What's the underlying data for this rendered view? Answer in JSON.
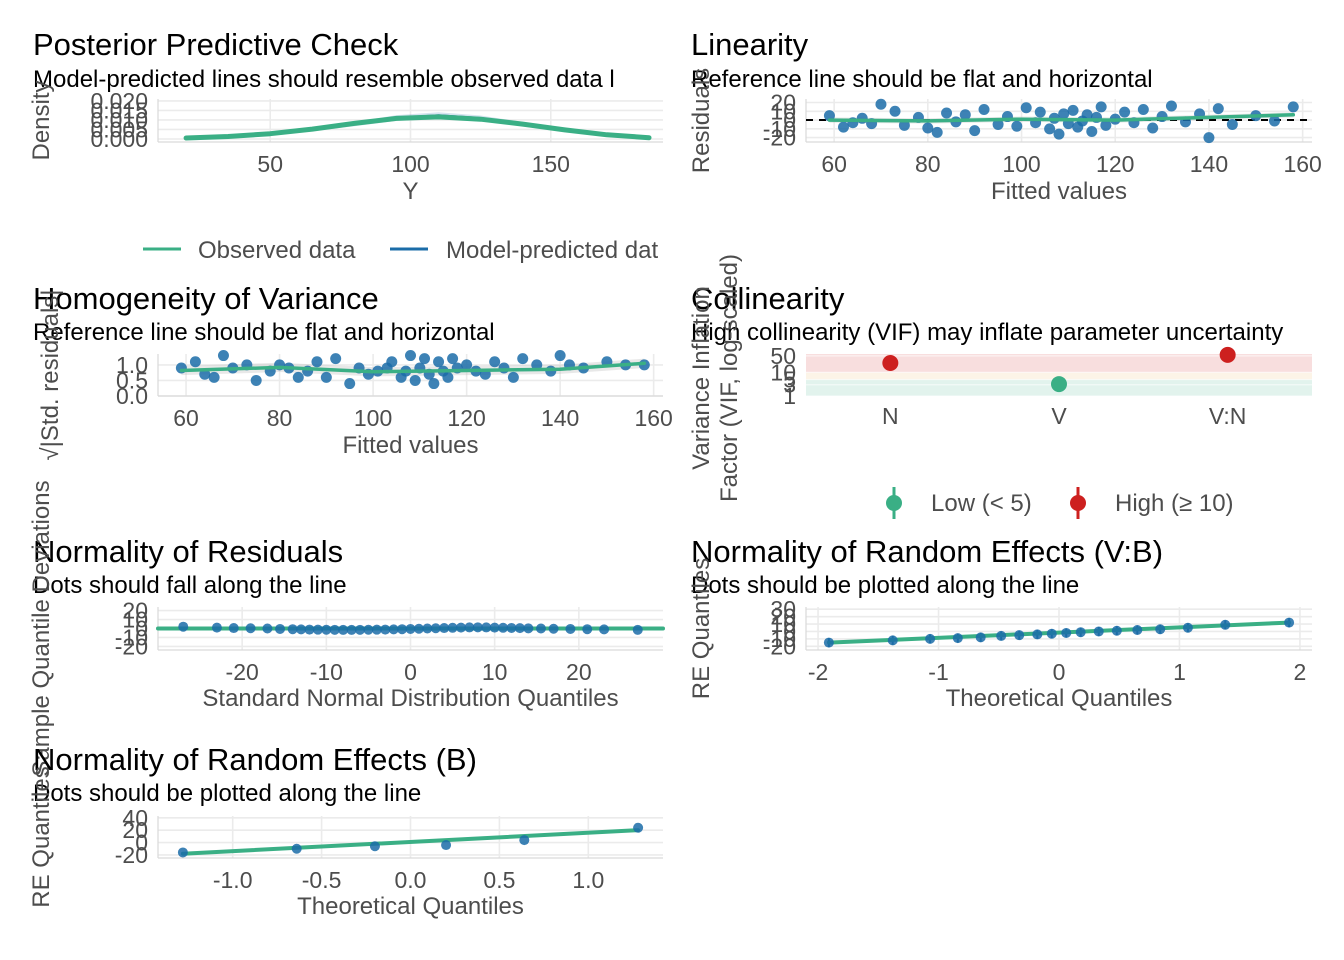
{
  "colors": {
    "green": "#3aaf85",
    "blue": "#1b6ca8",
    "red": "#cd201f",
    "grid": "#ebebeb",
    "axis_text": "#4d4d4d"
  },
  "chart_data": [
    {
      "id": "ppc",
      "type": "line",
      "title": "Posterior Predictive Check",
      "subtitle": "Model-predicted lines should resemble observed data l",
      "xlabel": "Y",
      "ylabel": "Density",
      "xlim": [
        10,
        190
      ],
      "ylim": [
        0,
        0.021
      ],
      "xticks": [
        50,
        100,
        150
      ],
      "yticks": [
        0.0,
        0.005,
        0.01,
        0.015,
        0.02
      ],
      "ytick_labels": [
        "0.000",
        "0.005",
        "0.010",
        "0.015",
        "0.020"
      ],
      "legend": [
        "Observed data",
        "Model-predicted dat"
      ],
      "series": [
        {
          "name": "Observed data",
          "x": [
            20,
            35,
            50,
            65,
            80,
            95,
            110,
            125,
            140,
            155,
            170,
            185
          ],
          "y": [
            0.0005,
            0.0013,
            0.0028,
            0.0052,
            0.0082,
            0.0108,
            0.0116,
            0.0104,
            0.0078,
            0.0048,
            0.0022,
            0.0007
          ]
        },
        {
          "name": "Model-predicted dat",
          "x": [
            20,
            35,
            50,
            65,
            80,
            95,
            110,
            125,
            140,
            155,
            170,
            185
          ],
          "y": [
            0.0004,
            0.0011,
            0.0025,
            0.0048,
            0.0079,
            0.0112,
            0.0125,
            0.011,
            0.008,
            0.0047,
            0.002,
            0.0006
          ]
        }
      ]
    },
    {
      "id": "linearity",
      "type": "scatter",
      "title": "Linearity",
      "subtitle": "Reference line should be flat and horizontal",
      "xlabel": "Fitted values",
      "ylabel": "Residuals",
      "xlim": [
        54,
        162
      ],
      "ylim": [
        -25,
        24
      ],
      "xticks": [
        60,
        80,
        100,
        120,
        140,
        160
      ],
      "yticks": [
        -20,
        -10,
        0,
        10,
        20
      ],
      "ytick_labels": [
        "-20",
        "-10",
        "0",
        "10",
        "20"
      ],
      "points": {
        "x": [
          59,
          62,
          64,
          66,
          68,
          70,
          73,
          75,
          78,
          80,
          82,
          84,
          86,
          88,
          90,
          92,
          95,
          97,
          99,
          101,
          103,
          104,
          106,
          107,
          108,
          109,
          110,
          111,
          112,
          113,
          114,
          115,
          116,
          117,
          118,
          120,
          122,
          124,
          126,
          128,
          130,
          132,
          135,
          138,
          140,
          142,
          145,
          150,
          154,
          158
        ],
        "y": [
          5,
          -8,
          -3,
          2,
          -4,
          18,
          10,
          -6,
          3,
          -9,
          -14,
          8,
          -2,
          6,
          -12,
          12,
          -5,
          4,
          -7,
          14,
          -3,
          9,
          -10,
          2,
          -16,
          7,
          -4,
          11,
          -8,
          -1,
          6,
          -13,
          3,
          15,
          -6,
          1,
          9,
          -3,
          12,
          -9,
          4,
          16,
          -2,
          7,
          -20,
          13,
          -5,
          5,
          -1,
          15
        ]
      },
      "smooth": {
        "x": [
          59,
          80,
          100,
          120,
          140,
          158
        ],
        "y": [
          0,
          -1,
          1,
          0,
          3,
          6
        ]
      },
      "reference": 0
    },
    {
      "id": "homogeneity",
      "type": "scatter",
      "title": "Homogeneity of Variance",
      "subtitle": "Reference line should be flat and horizontal",
      "xlabel": "Fitted values",
      "ylabel": "√|Std. residuals|",
      "xlim": [
        54,
        162
      ],
      "ylim": [
        0,
        1.35
      ],
      "xticks": [
        60,
        80,
        100,
        120,
        140,
        160
      ],
      "yticks": [
        0.0,
        0.5,
        1.0
      ],
      "ytick_labels": [
        "0.0",
        "0.5",
        "1.0"
      ],
      "points": {
        "x": [
          59,
          62,
          64,
          66,
          68,
          70,
          73,
          75,
          78,
          80,
          82,
          84,
          86,
          88,
          90,
          92,
          95,
          97,
          99,
          101,
          103,
          104,
          106,
          107,
          108,
          109,
          110,
          111,
          112,
          113,
          114,
          115,
          116,
          117,
          118,
          120,
          122,
          124,
          126,
          128,
          130,
          132,
          135,
          138,
          140,
          142,
          145,
          150,
          154,
          158
        ],
        "y": [
          0.9,
          1.1,
          0.7,
          0.6,
          1.3,
          0.9,
          1.0,
          0.5,
          0.8,
          1.0,
          0.9,
          0.6,
          0.8,
          1.1,
          0.6,
          1.2,
          0.4,
          0.9,
          0.7,
          0.8,
          0.9,
          1.1,
          0.6,
          0.8,
          1.3,
          0.5,
          0.9,
          1.2,
          0.7,
          0.4,
          1.1,
          0.8,
          0.6,
          1.2,
          0.9,
          1.0,
          0.8,
          0.7,
          1.1,
          0.9,
          0.6,
          1.2,
          1.0,
          0.8,
          1.3,
          1.0,
          0.9,
          1.1,
          1.0,
          1.0
        ]
      },
      "smooth": {
        "x": [
          59,
          80,
          100,
          120,
          140,
          158
        ],
        "y": [
          0.82,
          0.92,
          0.78,
          0.82,
          0.86,
          1.05
        ]
      }
    },
    {
      "id": "collinearity",
      "type": "scatter",
      "title": "Collinearity",
      "subtitle": "High collinearity (VIF) may inflate parameter uncertainty",
      "xlabel": "",
      "ylabel_lines": [
        "Variance Inflation",
        "Factor (VIF, log-scaled)"
      ],
      "categories": [
        "N",
        "V",
        "V:N"
      ],
      "yscale": "log",
      "ylim": [
        1,
        60
      ],
      "yticks": [
        1,
        3,
        5,
        10,
        50
      ],
      "ytick_labels": [
        "1",
        "3",
        "5",
        "10",
        "50"
      ],
      "values": [
        25,
        3.2,
        55
      ],
      "point_class": [
        "high",
        "low",
        "high"
      ],
      "legend": [
        "Low (< 5)",
        "High (≥ 10)"
      ]
    },
    {
      "id": "qq",
      "type": "scatter",
      "title": "Normality of Residuals",
      "subtitle": "Dots should fall along the line",
      "xlabel": "Standard Normal Distribution Quantiles",
      "ylabel": "Sample Quantile Deviations",
      "xlim": [
        -30,
        30
      ],
      "ylim": [
        -24,
        24
      ],
      "xticks": [
        -20,
        -10,
        0,
        10,
        20
      ],
      "yticks": [
        -20,
        -10,
        0,
        10,
        20
      ],
      "ytick_labels": [
        "-20",
        "-10",
        "0",
        "10",
        "20"
      ],
      "points": {
        "x": [
          -27,
          -23,
          -21,
          -19,
          -17,
          -15.5,
          -14,
          -13,
          -12,
          -11,
          -10,
          -9,
          -8,
          -7,
          -6,
          -5,
          -4,
          -3,
          -2,
          -1,
          0,
          1,
          2,
          3,
          4,
          5,
          6,
          7,
          8,
          9,
          10,
          11,
          12,
          13,
          14,
          15.5,
          17,
          19,
          21,
          23,
          27
        ],
        "y": [
          2,
          1,
          0.5,
          0.3,
          0,
          -0.5,
          -0.8,
          -1,
          -1.2,
          -1.3,
          -1.4,
          -1.5,
          -1.6,
          -1.6,
          -1.5,
          -1.4,
          -1.3,
          -1.2,
          -1,
          -0.8,
          -0.5,
          -0.3,
          0,
          0.3,
          0.5,
          0.8,
          1,
          1.2,
          1.3,
          1.2,
          1,
          0.8,
          0.6,
          0.4,
          0.2,
          0,
          -0.3,
          -0.5,
          -0.8,
          -1,
          -1.5
        ]
      },
      "line": {
        "x": [
          -30,
          30
        ],
        "y": [
          0,
          0
        ]
      }
    },
    {
      "id": "re_vb",
      "type": "scatter",
      "title": "Normality of Random Effects (V:B)",
      "subtitle": "Dots should be plotted along the line",
      "xlabel": "Theoretical Quantiles",
      "ylabel": "RE Quantiles",
      "xlim": [
        -2.1,
        2.1
      ],
      "ylim": [
        -25,
        33
      ],
      "xticks": [
        -2,
        -1,
        0,
        1,
        2
      ],
      "yticks": [
        -20,
        -10,
        0,
        10,
        20,
        30
      ],
      "ytick_labels": [
        "-20",
        "-10",
        "0",
        "10",
        "20",
        "30"
      ],
      "points": {
        "x": [
          -1.91,
          -1.38,
          -1.07,
          -0.84,
          -0.65,
          -0.48,
          -0.33,
          -0.18,
          -0.06,
          0.06,
          0.18,
          0.33,
          0.48,
          0.65,
          0.84,
          1.07,
          1.38,
          1.91
        ],
        "y": [
          -15,
          -12,
          -10,
          -9,
          -8,
          -6,
          -5,
          -4,
          -3,
          -2,
          -1,
          0,
          1,
          2,
          3,
          5,
          9,
          12
        ]
      },
      "error": 6,
      "line": {
        "x": [
          -1.91,
          1.91
        ],
        "y": [
          -15,
          12
        ]
      }
    },
    {
      "id": "re_b",
      "type": "scatter",
      "title": "Normality of Random Effects (B)",
      "subtitle": "Dots should be plotted along the line",
      "xlabel": "Theoretical Quantiles",
      "ylabel": "RE Quantiles",
      "xlim": [
        -1.42,
        1.42
      ],
      "ylim": [
        -25,
        43
      ],
      "xticks": [
        -1.0,
        -0.5,
        0.0,
        0.5,
        1.0
      ],
      "xtick_labels": [
        "-1.0",
        "-0.5",
        "0.0",
        "0.5",
        "1.0"
      ],
      "yticks": [
        -20,
        0,
        20,
        40
      ],
      "ytick_labels": [
        "-20",
        "0",
        "20",
        "40"
      ],
      "points": {
        "x": [
          -1.28,
          -0.64,
          -0.2,
          0.2,
          0.64,
          1.28
        ],
        "y": [
          -16,
          -10,
          -6,
          -4,
          4,
          24
        ]
      },
      "line": {
        "x": [
          -1.28,
          1.28
        ],
        "y": [
          -18,
          20
        ]
      }
    }
  ]
}
